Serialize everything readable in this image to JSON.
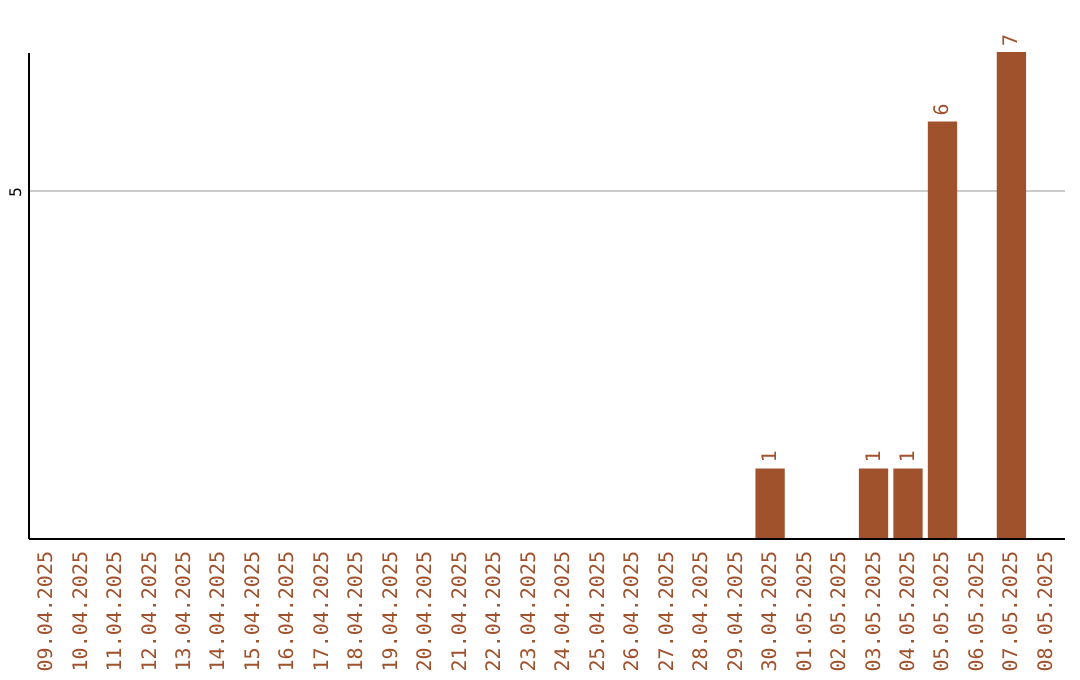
{
  "chart_data": {
    "type": "bar",
    "ylim": [
      0,
      7
    ],
    "yticks": [
      5
    ],
    "grid": "y",
    "categories": [
      "09.04.2025",
      "10.04.2025",
      "11.04.2025",
      "12.04.2025",
      "13.04.2025",
      "14.04.2025",
      "15.04.2025",
      "16.04.2025",
      "17.04.2025",
      "18.04.2025",
      "19.04.2025",
      "20.04.2025",
      "21.04.2025",
      "22.04.2025",
      "23.04.2025",
      "24.04.2025",
      "25.04.2025",
      "26.04.2025",
      "27.04.2025",
      "28.04.2025",
      "29.04.2025",
      "30.04.2025",
      "01.05.2025",
      "02.05.2025",
      "03.05.2025",
      "04.05.2025",
      "05.05.2025",
      "06.05.2025",
      "07.05.2025",
      "08.05.2025"
    ],
    "values": [
      null,
      null,
      null,
      null,
      null,
      null,
      null,
      null,
      null,
      null,
      null,
      null,
      null,
      null,
      null,
      null,
      null,
      null,
      null,
      null,
      null,
      1,
      null,
      null,
      1,
      1,
      6,
      null,
      7,
      null
    ],
    "data_labels": true,
    "color": "#a0522d"
  }
}
